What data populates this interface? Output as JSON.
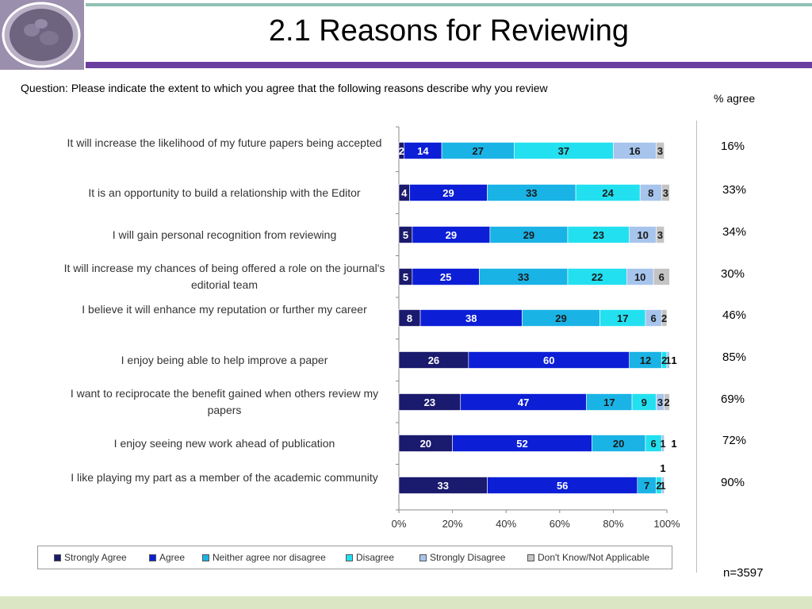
{
  "slide": {
    "title": "2.1 Reasons for Reviewing",
    "question": "Question: Please indicate the extent to which you agree that the following reasons describe why you review",
    "agree_header": "% agree",
    "agree_values": [
      "16%",
      "33%",
      "34%",
      "30%",
      "46%",
      "85%",
      "69%",
      "72%",
      "90%"
    ],
    "n_label": "n=3597"
  },
  "chart_data": {
    "type": "bar",
    "orientation": "horizontal",
    "stacked": true,
    "categories": [
      "It will increase the likelihood of my future papers being accepted",
      "It is an opportunity to build a relationship with the Editor",
      "I will gain personal recognition from reviewing",
      "It will increase my chances of being offered a role on the journal's editorial team",
      "I believe it will enhance my reputation or further my career",
      "I enjoy being able to help improve a paper",
      "I want to reciprocate the benefit gained when others review my papers",
      "I enjoy seeing new work ahead of publication",
      "I like playing my part as a member of the academic community"
    ],
    "series": [
      {
        "name": "Strongly Agree",
        "color": "#1a1a6e",
        "values": [
          2,
          4,
          5,
          5,
          8,
          26,
          23,
          20,
          33
        ]
      },
      {
        "name": "Agree",
        "color": "#0c1fd6",
        "values": [
          14,
          29,
          29,
          25,
          38,
          60,
          47,
          52,
          56
        ]
      },
      {
        "name": "Neither agree nor disagree",
        "color": "#1ab3e6",
        "values": [
          27,
          33,
          29,
          33,
          29,
          12,
          17,
          20,
          7
        ]
      },
      {
        "name": "Disagree",
        "color": "#23e0f0",
        "values": [
          37,
          24,
          23,
          22,
          17,
          2,
          9,
          6,
          2
        ]
      },
      {
        "name": "Strongly Disagree",
        "color": "#a7c4ec",
        "values": [
          16,
          8,
          10,
          10,
          6,
          1,
          3,
          1,
          1
        ]
      },
      {
        "name": "Don't Know/Not Applicable",
        "color": "#c4c4c4",
        "values": [
          3,
          3,
          3,
          6,
          2,
          0,
          2,
          0,
          0
        ]
      }
    ],
    "x_ticks": [
      "0%",
      "20%",
      "40%",
      "60%",
      "80%",
      "100%"
    ],
    "xlim": [
      0,
      100
    ],
    "outside_labels": [
      {
        "row": 5,
        "text": "1"
      },
      {
        "row": 6,
        "text": ""
      },
      {
        "row": 7,
        "text": "1"
      },
      {
        "row": 8,
        "text": "1"
      }
    ],
    "legend_position": "bottom",
    "grid": false
  }
}
